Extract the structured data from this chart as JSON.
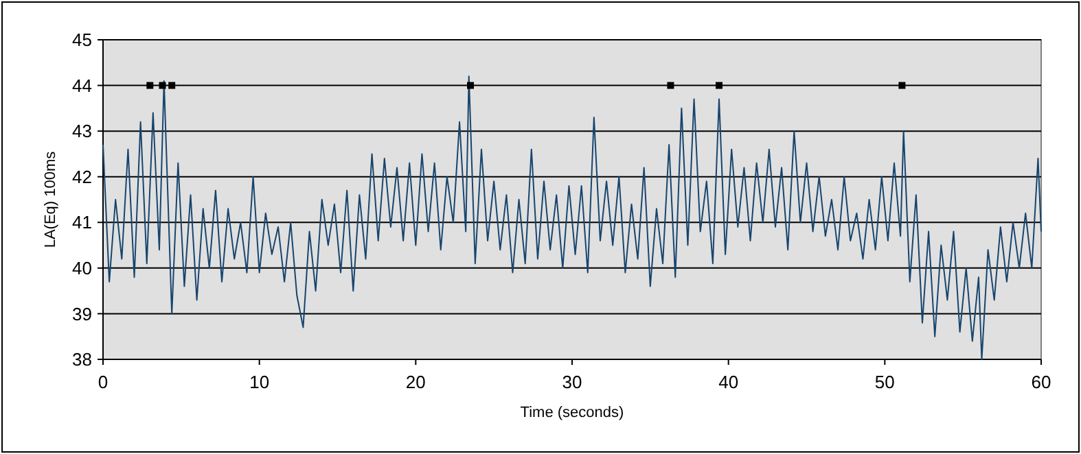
{
  "chart_data": {
    "type": "line",
    "xlabel": "Time (seconds)",
    "ylabel": "LA(Eq) 100ms",
    "xlim": [
      0,
      60
    ],
    "xticks": [
      0,
      10,
      20,
      30,
      40,
      50,
      60
    ],
    "ylim": [
      38,
      45
    ],
    "yticks": [
      38,
      39,
      40,
      41,
      42,
      43,
      44,
      45
    ],
    "grid": "y",
    "series": [
      {
        "color": "#17456e",
        "x": [
          0,
          0.4,
          0.8,
          1.2,
          1.6,
          2.0,
          2.4,
          2.8,
          3.2,
          3.6,
          3.9,
          4.4,
          4.8,
          5.2,
          5.6,
          6.0,
          6.4,
          6.8,
          7.2,
          7.6,
          8.0,
          8.4,
          8.8,
          9.2,
          9.6,
          10.0,
          10.4,
          10.8,
          11.2,
          11.6,
          12.0,
          12.4,
          12.8,
          13.2,
          13.6,
          14.0,
          14.4,
          14.8,
          15.2,
          15.6,
          16.0,
          16.4,
          16.8,
          17.2,
          17.6,
          18.0,
          18.4,
          18.8,
          19.2,
          19.6,
          20.0,
          20.4,
          20.8,
          21.2,
          21.6,
          22.0,
          22.4,
          22.8,
          23.2,
          23.4,
          23.8,
          24.2,
          24.6,
          25.0,
          25.4,
          25.8,
          26.2,
          26.6,
          27.0,
          27.4,
          27.8,
          28.2,
          28.6,
          29.0,
          29.4,
          29.8,
          30.2,
          30.6,
          31.0,
          31.4,
          31.8,
          32.2,
          32.6,
          33.0,
          33.4,
          33.8,
          34.2,
          34.6,
          35.0,
          35.4,
          35.8,
          36.2,
          36.6,
          37.0,
          37.4,
          37.8,
          38.2,
          38.6,
          39.0,
          39.4,
          39.8,
          40.2,
          40.6,
          41.0,
          41.4,
          41.8,
          42.2,
          42.6,
          43.0,
          43.4,
          43.8,
          44.2,
          44.6,
          45.0,
          45.4,
          45.8,
          46.2,
          46.6,
          47.0,
          47.4,
          47.8,
          48.2,
          48.6,
          49.0,
          49.4,
          49.8,
          50.2,
          50.6,
          51.0,
          51.2,
          51.6,
          52.0,
          52.4,
          52.8,
          53.2,
          53.6,
          54.0,
          54.4,
          54.8,
          55.2,
          55.6,
          56.0,
          56.2,
          56.6,
          57.0,
          57.4,
          57.8,
          58.2,
          58.6,
          59.0,
          59.4,
          59.8,
          60.0
        ],
        "values": [
          42.7,
          39.7,
          41.5,
          40.2,
          42.6,
          39.8,
          43.2,
          40.1,
          43.4,
          40.4,
          44.1,
          39.0,
          42.3,
          39.6,
          41.6,
          39.3,
          41.3,
          40.0,
          41.7,
          39.7,
          41.3,
          40.2,
          41.0,
          39.9,
          42.0,
          39.9,
          41.2,
          40.3,
          40.9,
          39.7,
          41.0,
          39.4,
          38.7,
          40.8,
          39.5,
          41.5,
          40.5,
          41.4,
          39.9,
          41.7,
          39.5,
          41.6,
          40.2,
          42.5,
          40.6,
          42.4,
          40.9,
          42.2,
          40.6,
          42.3,
          40.5,
          42.5,
          40.8,
          42.3,
          40.4,
          42.0,
          41.0,
          43.2,
          40.8,
          44.2,
          40.1,
          42.6,
          40.6,
          41.9,
          40.4,
          41.6,
          39.9,
          41.5,
          40.1,
          42.6,
          40.2,
          41.9,
          40.4,
          41.6,
          40.0,
          41.8,
          40.3,
          41.8,
          39.9,
          43.3,
          40.6,
          41.9,
          40.5,
          42.0,
          39.9,
          41.4,
          40.2,
          42.2,
          39.6,
          41.3,
          40.1,
          42.7,
          39.8,
          43.5,
          40.5,
          43.7,
          40.8,
          41.9,
          40.1,
          43.7,
          40.3,
          42.6,
          40.9,
          42.2,
          40.6,
          42.3,
          41.0,
          42.6,
          40.9,
          42.2,
          40.4,
          43.0,
          41.0,
          42.3,
          40.8,
          42.0,
          40.7,
          41.5,
          40.4,
          42.0,
          40.6,
          41.2,
          40.2,
          41.5,
          40.4,
          42.0,
          40.6,
          42.3,
          40.7,
          43.0,
          39.7,
          41.6,
          38.8,
          40.8,
          38.5,
          40.5,
          39.3,
          40.8,
          38.6,
          40.0,
          38.4,
          39.8,
          38.0,
          40.4,
          39.3,
          40.9,
          39.7,
          41.0,
          40.0,
          41.2,
          40.0,
          42.4,
          40.8
        ]
      },
      {
        "type": "scatter",
        "color": "#000000",
        "marker": "square",
        "x": [
          3.0,
          3.8,
          4.4,
          23.5,
          36.3,
          39.4,
          51.1
        ],
        "values": [
          44,
          44,
          44,
          44,
          44,
          44,
          44
        ]
      }
    ]
  }
}
